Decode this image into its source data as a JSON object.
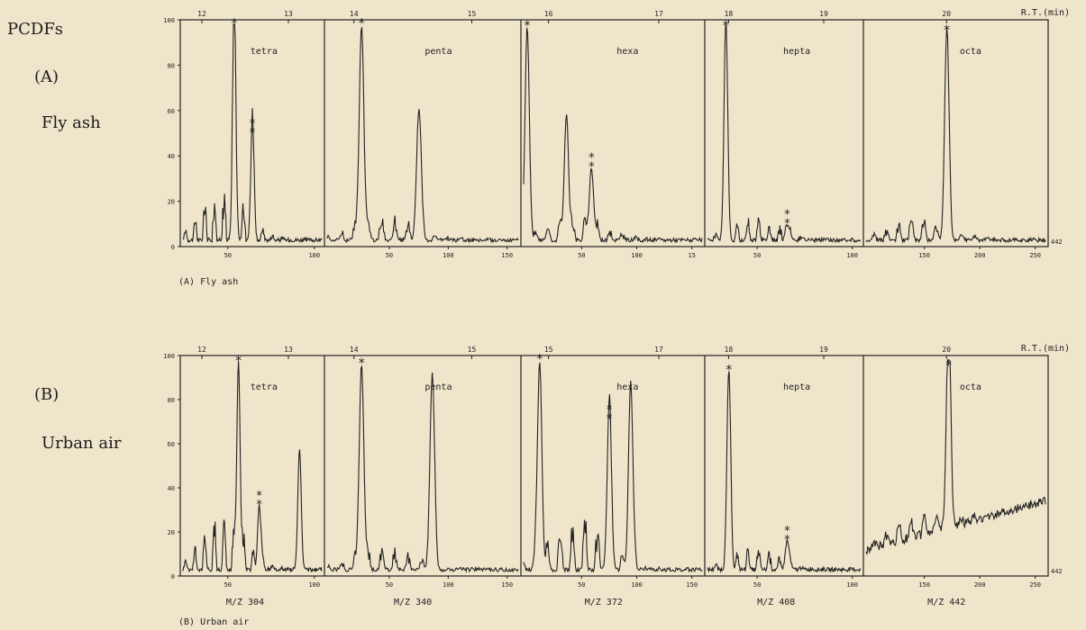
{
  "labels": {
    "series_title": "PCDFs",
    "panel_a_letter": "(A)",
    "panel_a_name": "Fly ash",
    "panel_b_letter": "(B)",
    "panel_b_name": "Urban air",
    "caption_a": "(A) Fly ash",
    "caption_b": "(B) Urban air",
    "rt_unit": "R.T.(min)",
    "end_mass": "442"
  },
  "colors": {
    "background": "#efe5cb",
    "ink": "#222222"
  },
  "chart_data": [
    {
      "type": "line",
      "title": "(A) Fly ash",
      "yticks": [
        0,
        20,
        40,
        60,
        80,
        100
      ],
      "ylim": [
        0,
        100
      ],
      "segments": [
        {
          "name": "tetra",
          "rt_ticks": [
            "12",
            "13"
          ],
          "scan_ticks": [
            "50",
            "100"
          ],
          "peaks": [
            {
              "x": 0.37,
              "y": 95,
              "mark": "*"
            },
            {
              "x": 0.5,
              "y": 47,
              "mark": "**"
            }
          ]
        },
        {
          "name": "penta",
          "rt_ticks": [
            "14",
            "15"
          ],
          "scan_ticks": [
            "50",
            "100",
            "150"
          ],
          "peaks": [
            {
              "x": 0.18,
              "y": 95,
              "mark": "*"
            },
            {
              "x": 0.48,
              "y": 57
            }
          ]
        },
        {
          "name": "hexa",
          "rt_ticks": [
            "16",
            "17"
          ],
          "scan_ticks": [
            "50",
            "100",
            "15"
          ],
          "peaks": [
            {
              "x": 0.02,
              "y": 94,
              "mark": "*"
            },
            {
              "x": 0.24,
              "y": 55
            },
            {
              "x": 0.38,
              "y": 32,
              "mark": "**"
            }
          ]
        },
        {
          "name": "hepta",
          "rt_ticks": [
            "18",
            "19"
          ],
          "scan_ticks": [
            "50",
            "100"
          ],
          "peaks": [
            {
              "x": 0.12,
              "y": 94,
              "mark": "*"
            },
            {
              "x": 0.52,
              "y": 7,
              "mark": "**"
            }
          ]
        },
        {
          "name": "octa",
          "rt_ticks": [
            "20"
          ],
          "scan_ticks": [
            "150",
            "200",
            "250"
          ],
          "peaks": [
            {
              "x": 0.45,
              "y": 92,
              "mark": "*"
            }
          ]
        }
      ]
    },
    {
      "type": "line",
      "title": "(B) Urban air",
      "yticks": [
        0,
        20,
        40,
        60,
        80,
        100
      ],
      "ylim": [
        0,
        100
      ],
      "segments": [
        {
          "name": "tetra",
          "rt_ticks": [
            "12",
            "13"
          ],
          "scan_ticks": [
            "50",
            "100"
          ],
          "mass": "M/Z 304",
          "peaks": [
            {
              "x": 0.4,
              "y": 94,
              "mark": "*"
            },
            {
              "x": 0.55,
              "y": 29,
              "mark": "**"
            },
            {
              "x": 0.84,
              "y": 55
            }
          ]
        },
        {
          "name": "penta",
          "rt_ticks": [
            "14",
            "15"
          ],
          "scan_ticks": [
            "50",
            "100",
            "150"
          ],
          "mass": "M/Z 340",
          "peaks": [
            {
              "x": 0.18,
              "y": 93,
              "mark": "*"
            },
            {
              "x": 0.55,
              "y": 88
            }
          ]
        },
        {
          "name": "hexa",
          "rt_ticks": [
            "15",
            "17"
          ],
          "scan_ticks": [
            "50",
            "100",
            "150"
          ],
          "mass": "M/Z 372",
          "peaks": [
            {
              "x": 0.09,
              "y": 95,
              "mark": "*"
            },
            {
              "x": 0.48,
              "y": 68,
              "mark": "**"
            },
            {
              "x": 0.6,
              "y": 85
            }
          ]
        },
        {
          "name": "hepta",
          "rt_ticks": [
            "18",
            "19"
          ],
          "scan_ticks": [
            "50",
            "100"
          ],
          "mass": "M/Z 408",
          "peaks": [
            {
              "x": 0.14,
              "y": 90,
              "mark": "*"
            },
            {
              "x": 0.52,
              "y": 13,
              "mark": "**"
            }
          ]
        },
        {
          "name": "octa",
          "rt_ticks": [
            "20"
          ],
          "scan_ticks": [
            "150",
            "200",
            "250"
          ],
          "mass": "M/Z 442",
          "peaks": [
            {
              "x": 0.46,
              "y": 92,
              "mark": "*"
            }
          ]
        }
      ]
    }
  ]
}
